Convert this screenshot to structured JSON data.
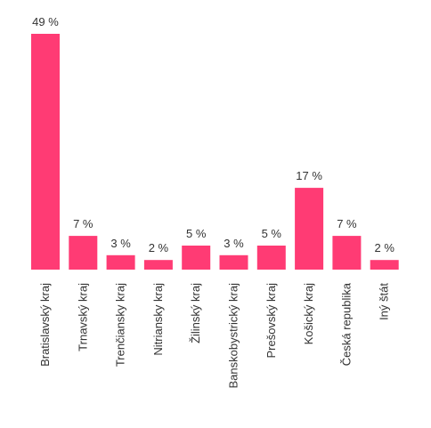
{
  "chart_data": {
    "type": "bar",
    "categories": [
      "Bratislavský kraj",
      "Trnavský kraj",
      "Trenčiansky kraj",
      "Nitriansky kraj",
      "Žilinský kraj",
      "Banskobystrický kraj",
      "Prešovský kraj",
      "Košický kraj",
      "Česká republika",
      "Iný štát"
    ],
    "values": [
      49,
      7,
      3,
      2,
      5,
      3,
      5,
      17,
      7,
      2
    ],
    "value_labels": [
      "49 %",
      "7 %",
      "3 %",
      "2 %",
      "5 %",
      "3 %",
      "5 %",
      "17 %",
      "7 %",
      "2 %"
    ],
    "bar_color": "#ff3b74",
    "ylim": [
      0,
      49
    ],
    "grid": false,
    "legend": "none"
  }
}
